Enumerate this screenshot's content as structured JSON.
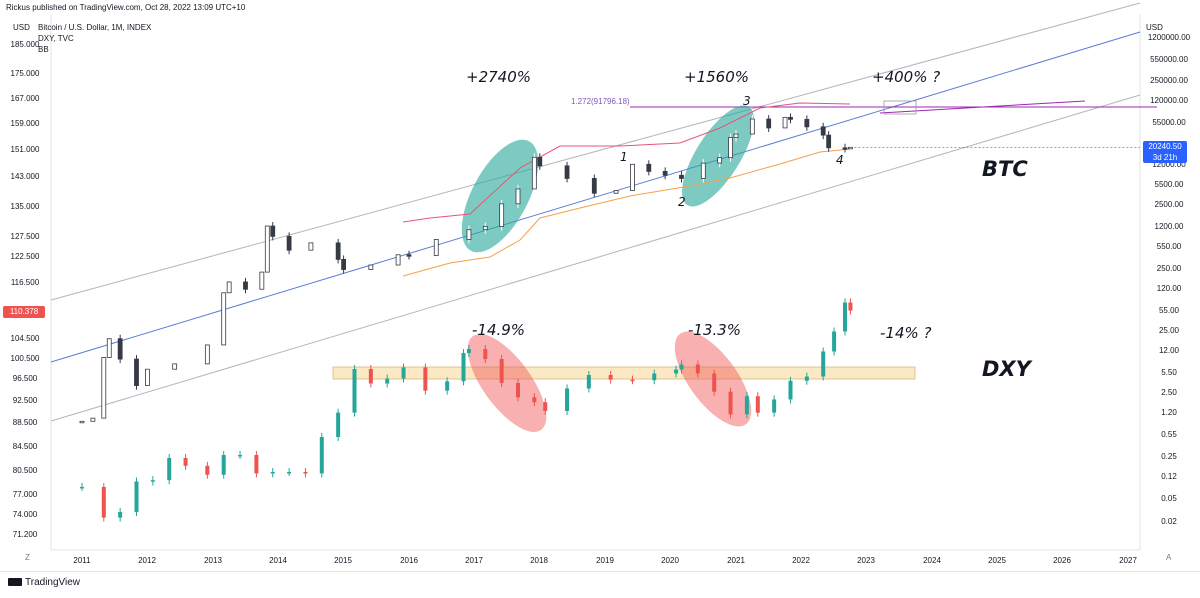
{
  "header": {
    "publisher": "Rickus published on TradingView.com, Oct 28, 2022 13:09 UTC+10",
    "symbol_line": "Bitcoin / U.S. Dollar, 1M, INDEX",
    "secondary_symbol": "DXY, TVC",
    "indicator": "BB"
  },
  "left_axis": {
    "unit": "USD",
    "ticks": [
      "185.000",
      "175.000",
      "167.000",
      "159.000",
      "151.000",
      "143.000",
      "135.000",
      "127.500",
      "122.500",
      "116.500",
      "110.378",
      "104.500",
      "100.500",
      "96.500",
      "92.500",
      "88.500",
      "84.500",
      "80.500",
      "77.000",
      "74.000",
      "71.200"
    ],
    "current_value": "110.378",
    "current_color": "#ef5350"
  },
  "right_axis": {
    "unit": "USD",
    "ticks": [
      "1200000.00",
      "550000.00",
      "250000.00",
      "120000.00",
      "55000.00",
      "25000.00",
      "12000.00",
      "5500.00",
      "2500.00",
      "1200.00",
      "550.00",
      "250.00",
      "120.00",
      "55.00",
      "25.00",
      "12.00",
      "5.50",
      "2.50",
      "1.20",
      "0.55",
      "0.25",
      "0.12",
      "0.05",
      "0.02"
    ],
    "current_price": "20240.50",
    "countdown": "3d 21h",
    "badge_color": "#2962ff"
  },
  "x_axis": {
    "years": [
      "2011",
      "2012",
      "2013",
      "2014",
      "2015",
      "2016",
      "2017",
      "2018",
      "2019",
      "2020",
      "2021",
      "2022",
      "2023",
      "2024",
      "2025",
      "2026",
      "2027"
    ]
  },
  "annotations": {
    "btc_label": "BTC",
    "dxy_label": "DXY",
    "btc_gain_1": "+2740%",
    "btc_gain_2": "+1560%",
    "btc_gain_3": "+400% ?",
    "dxy_drop_1": "-14.9%",
    "dxy_drop_2": "-13.3%",
    "dxy_drop_3": "-14% ?",
    "fib_label": "1.272(91796.18)",
    "wave_1": "1",
    "wave_2": "2",
    "wave_3": "3",
    "wave_4": "4"
  },
  "footer": {
    "logo_text": "TradingView",
    "left_corner": "Z",
    "right_corner": "A"
  },
  "colors": {
    "up": "#26a69a",
    "down": "#ef5350",
    "btc_candle": "#363a45",
    "trendline": "#5b7fd6",
    "channel": "#b2b5be",
    "bb_upper": "#e5557a",
    "bb_lower": "#f5a047",
    "bb_mid": "#2196f3",
    "green_zone": "#26a69a",
    "red_zone": "#ef5350",
    "range_box": "#fbe9c6",
    "fib": "#9c27b0"
  },
  "chart_data": [
    {
      "type": "candlestick",
      "series": [
        {
          "name": "Bitcoin / U.S. Dollar, 1M, INDEX",
          "axis": "right",
          "scale": "log"
        }
      ],
      "x": [
        "2011-01",
        "2011-03",
        "2011-05",
        "2011-06",
        "2011-08",
        "2011-11",
        "2012-01",
        "2012-06",
        "2012-12",
        "2013-03",
        "2013-04",
        "2013-07",
        "2013-10",
        "2013-11",
        "2013-12",
        "2014-03",
        "2014-07",
        "2014-12",
        "2015-01",
        "2015-06",
        "2015-11",
        "2016-01",
        "2016-06",
        "2016-12",
        "2017-03",
        "2017-06",
        "2017-09",
        "2017-12",
        "2018-01",
        "2018-06",
        "2018-11",
        "2019-03",
        "2019-06",
        "2019-09",
        "2019-12",
        "2020-03",
        "2020-07",
        "2020-10",
        "2020-12",
        "2021-01",
        "2021-04",
        "2021-07",
        "2021-10",
        "2021-11",
        "2022-02",
        "2022-05",
        "2022-06",
        "2022-09",
        "2022-10"
      ],
      "close": [
        0.8,
        0.9,
        8.5,
        17,
        8,
        3,
        5.5,
        6.7,
        13.5,
        93,
        139,
        106,
        200,
        1100,
        750,
        450,
        590,
        320,
        220,
        260,
        380,
        370,
        670,
        960,
        1080,
        2500,
        4340,
        14000,
        10200,
        6400,
        3700,
        4100,
        10800,
        8300,
        7200,
        6400,
        11300,
        13800,
        29000,
        33100,
        57700,
        41500,
        61300,
        57000,
        43200,
        31800,
        19900,
        19400,
        20240
      ],
      "ylim": [
        0.02,
        1200000
      ]
    },
    {
      "type": "candlestick",
      "series": [
        {
          "name": "DXY, TVC",
          "axis": "left"
        }
      ],
      "x": [
        "2011-01",
        "2011-05",
        "2011-08",
        "2011-11",
        "2012-02",
        "2012-05",
        "2012-08",
        "2012-12",
        "2013-03",
        "2013-06",
        "2013-09",
        "2013-12",
        "2014-03",
        "2014-06",
        "2014-09",
        "2014-12",
        "2015-03",
        "2015-06",
        "2015-09",
        "2015-12",
        "2016-04",
        "2016-08",
        "2016-11",
        "2016-12",
        "2017-03",
        "2017-06",
        "2017-09",
        "2017-12",
        "2018-02",
        "2018-06",
        "2018-10",
        "2019-02",
        "2019-06",
        "2019-10",
        "2020-02",
        "2020-03",
        "2020-06",
        "2020-09",
        "2020-12",
        "2021-03",
        "2021-05",
        "2021-08",
        "2021-11",
        "2022-02",
        "2022-05",
        "2022-07",
        "2022-09",
        "2022-10"
      ],
      "close": [
        78,
        73.5,
        74.3,
        78.8,
        79,
        82.5,
        81.2,
        79.8,
        83,
        83,
        80,
        80.2,
        80.2,
        80,
        86,
        90.2,
        98.3,
        95.5,
        96.4,
        98.6,
        94.2,
        95.9,
        101.5,
        102.3,
        100.3,
        95.6,
        93,
        92.1,
        90.5,
        94.6,
        97.1,
        96.2,
        96.1,
        97.4,
        98.2,
        99.2,
        97.4,
        94,
        89.9,
        93.2,
        90.2,
        92.6,
        96,
        96.8,
        101.8,
        105.9,
        112.1,
        110.378
      ],
      "ylim": [
        70,
        190
      ]
    }
  ]
}
